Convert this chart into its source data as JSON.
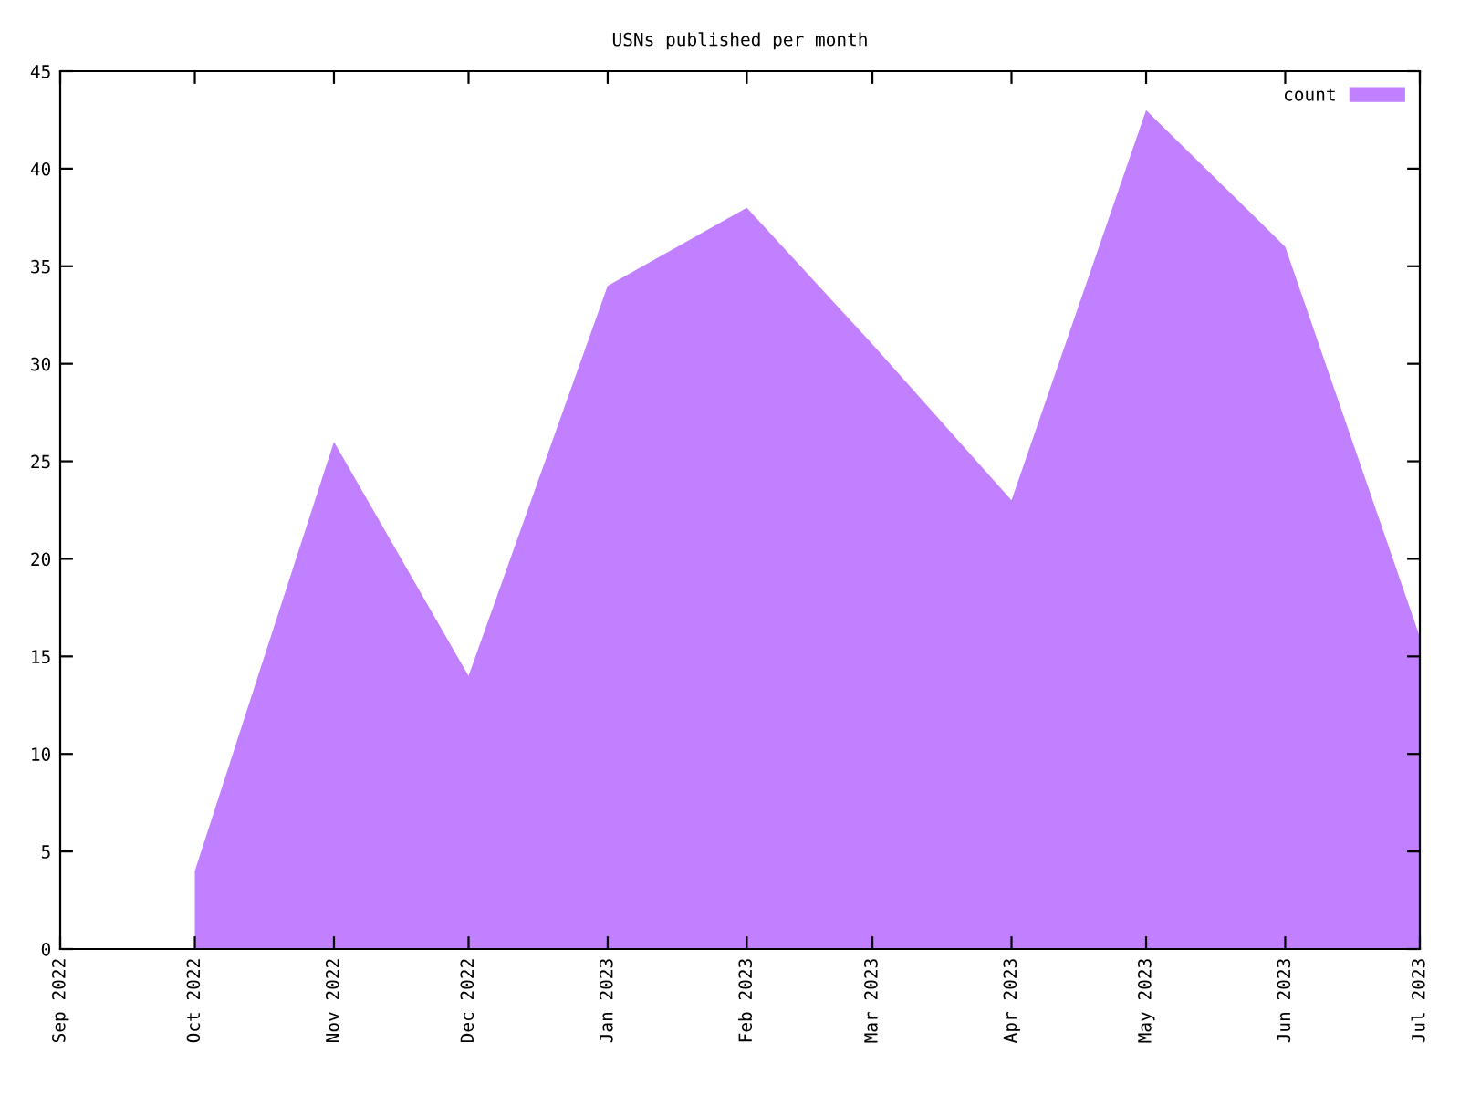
{
  "chart_data": {
    "type": "area",
    "title": "USNs published per month",
    "x": [
      "2022-10-01",
      "2022-11-01",
      "2022-12-01",
      "2023-01-01",
      "2023-02-01",
      "2023-03-01",
      "2023-04-01",
      "2023-05-01",
      "2023-06-01",
      "2023-07-01"
    ],
    "series": [
      {
        "name": "count",
        "color": "#c080ff",
        "values": [
          4,
          26,
          14,
          34,
          38,
          31,
          23,
          43,
          36,
          16
        ]
      }
    ],
    "xlim": [
      "2022-09-01",
      "2023-07-01"
    ],
    "xticks": [
      {
        "value": "2022-09-01",
        "label": "Sep 2022"
      },
      {
        "value": "2022-10-01",
        "label": "Oct 2022"
      },
      {
        "value": "2022-11-01",
        "label": "Nov 2022"
      },
      {
        "value": "2022-12-01",
        "label": "Dec 2022"
      },
      {
        "value": "2023-01-01",
        "label": "Jan 2023"
      },
      {
        "value": "2023-02-01",
        "label": "Feb 2023"
      },
      {
        "value": "2023-03-01",
        "label": "Mar 2023"
      },
      {
        "value": "2023-04-01",
        "label": "Apr 2023"
      },
      {
        "value": "2023-05-01",
        "label": "May 2023"
      },
      {
        "value": "2023-06-01",
        "label": "Jun 2023"
      },
      {
        "value": "2023-07-01",
        "label": "Jul 2023"
      }
    ],
    "ylim": [
      0,
      45
    ],
    "yticks": [
      0,
      5,
      10,
      15,
      20,
      25,
      30,
      35,
      40,
      45
    ],
    "grid": false,
    "legend": "top right"
  }
}
